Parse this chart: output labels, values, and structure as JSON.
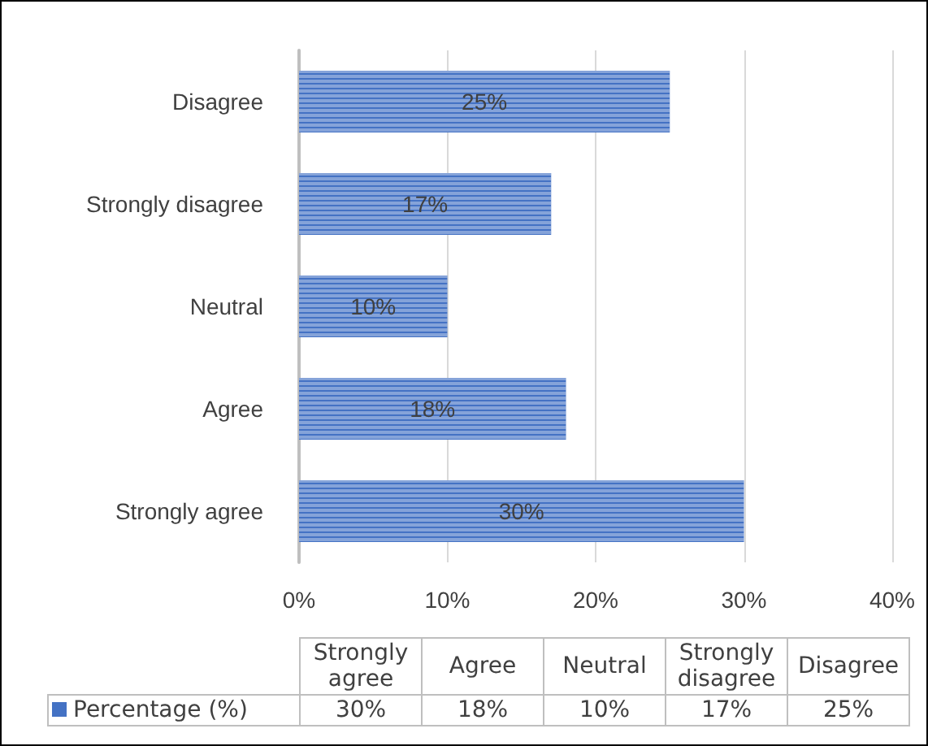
{
  "chart_data": {
    "type": "bar",
    "orientation": "horizontal",
    "categories": [
      "Disagree",
      "Strongly disagree",
      "Neutral",
      "Agree",
      "Strongly agree"
    ],
    "series": [
      {
        "name": "Percentage (%)",
        "color": "#4472c4",
        "values": [
          25,
          17,
          10,
          18,
          30
        ],
        "value_labels": [
          "25%",
          "17%",
          "10%",
          "18%",
          "30%"
        ]
      }
    ],
    "xlim": [
      0,
      40
    ],
    "xticks": [
      {
        "value": 0,
        "label": "0%"
      },
      {
        "value": 10,
        "label": "10%"
      },
      {
        "value": 20,
        "label": "20%"
      },
      {
        "value": 30,
        "label": "30%"
      },
      {
        "value": 40,
        "label": "40%"
      }
    ],
    "grid": "x",
    "legend": "bottom"
  }
}
